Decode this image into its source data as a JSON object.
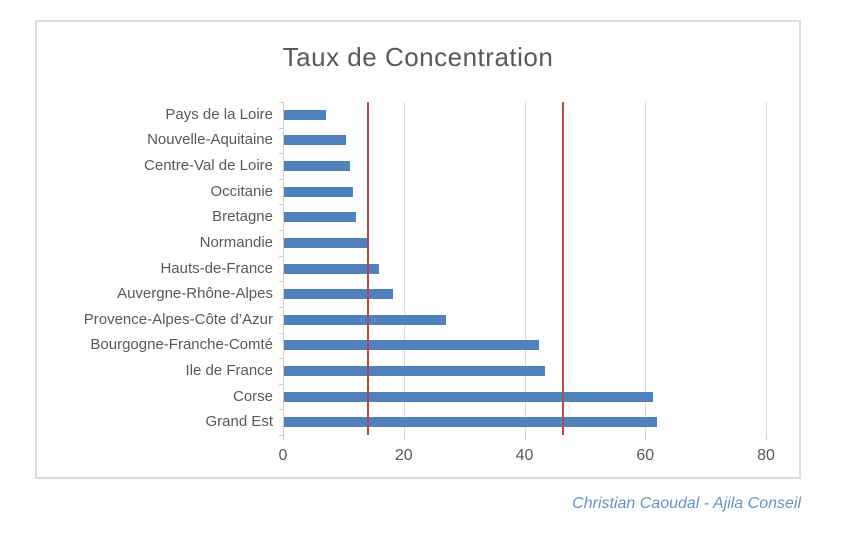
{
  "title": "Taux de Concentration",
  "credit": "Christian Caoudal - Ajila Conseil",
  "chart_data": {
    "type": "bar",
    "orientation": "horizontal",
    "title": "Taux de Concentration",
    "categories": [
      "Pays de la Loire",
      "Nouvelle-Aquitaine",
      "Centre-Val de Loire",
      "Occitanie",
      "Bretagne",
      "Normandie",
      "Hauts-de-France",
      "Auvergne-Rhône-Alpes",
      "Provence-Alpes-Côte d’Azur",
      "Bourgogne-Franche-Comté",
      "Ile de France",
      "Corse",
      "Grand Est"
    ],
    "values": [
      7,
      10.3,
      11,
      11.4,
      12,
      13.8,
      15.7,
      18,
      26.9,
      42.2,
      43.3,
      61.2,
      61.8
    ],
    "xlim": [
      0,
      80
    ],
    "x_ticks": [
      0,
      20,
      40,
      60,
      80
    ],
    "reference_lines": [
      {
        "value": 14.1,
        "color": "#b24a47"
      },
      {
        "value": 46.3,
        "color": "#b24a47"
      }
    ],
    "bar_color": "#4f81bd",
    "grid": true,
    "legend": false,
    "xlabel": "",
    "ylabel": ""
  },
  "colors": {
    "title_text": "#595959",
    "axis_text": "#595959",
    "gridline": "#d9d9d9",
    "frame_border": "#dcdcdc",
    "bar": "#4f81bd",
    "reference_line": "#b24a47",
    "credit_text": "#6593c5"
  }
}
